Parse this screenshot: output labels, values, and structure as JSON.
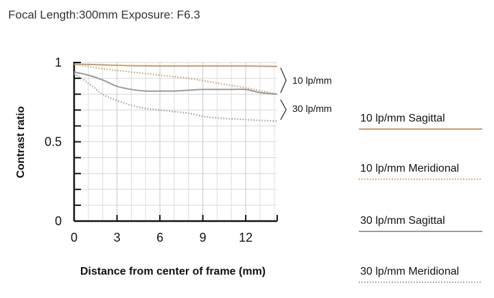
{
  "header": {
    "title": "Focal Length:300mm  Exposure: F6.3"
  },
  "chart_data": {
    "type": "line",
    "xlabel": "Distance from center of frame (mm)",
    "ylabel": "Contrast ratio",
    "xlim": [
      0,
      14.2
    ],
    "ylim": [
      0,
      1
    ],
    "x_ticks": [
      0,
      3,
      6,
      9,
      12
    ],
    "x_tick_labels": [
      "0",
      "3",
      "6",
      "9",
      "12"
    ],
    "y_ticks": [
      0,
      0.5,
      1
    ],
    "y_tick_labels": [
      "0",
      "0.5",
      "1"
    ],
    "grid": true,
    "legend_placement": "right",
    "group_labels": [
      "10 lp/mm",
      "30 lp/mm"
    ],
    "series": [
      {
        "name": "10 lp/mm Sagittal",
        "style": "solid",
        "color": "#c79a6e",
        "x": [
          0,
          2,
          4,
          6,
          8,
          10,
          12,
          14.2
        ],
        "y": [
          0.99,
          0.985,
          0.98,
          0.978,
          0.978,
          0.978,
          0.978,
          0.975
        ]
      },
      {
        "name": "10 lp/mm Meridional",
        "style": "dotted",
        "color": "#c79a6e",
        "x": [
          0,
          2,
          4,
          6,
          8,
          10,
          12,
          14.2
        ],
        "y": [
          0.99,
          0.96,
          0.94,
          0.92,
          0.9,
          0.87,
          0.84,
          0.8
        ]
      },
      {
        "name": "30 lp/mm Sagittal",
        "style": "solid",
        "color": "#9a9a9a",
        "x": [
          0,
          1,
          2,
          3,
          4,
          5,
          6,
          7,
          8,
          9,
          10,
          11,
          12,
          13,
          14.2
        ],
        "y": [
          0.94,
          0.92,
          0.89,
          0.85,
          0.83,
          0.82,
          0.82,
          0.82,
          0.825,
          0.83,
          0.83,
          0.83,
          0.83,
          0.81,
          0.8
        ]
      },
      {
        "name": "30 lp/mm Meridional",
        "style": "dotted",
        "color": "#9a9a9a",
        "x": [
          0,
          1,
          2,
          3,
          4,
          5,
          6,
          7,
          8,
          9,
          10,
          11,
          12,
          13,
          14.2
        ],
        "y": [
          0.93,
          0.87,
          0.8,
          0.76,
          0.73,
          0.71,
          0.7,
          0.69,
          0.68,
          0.66,
          0.65,
          0.645,
          0.64,
          0.635,
          0.63
        ]
      }
    ]
  }
}
